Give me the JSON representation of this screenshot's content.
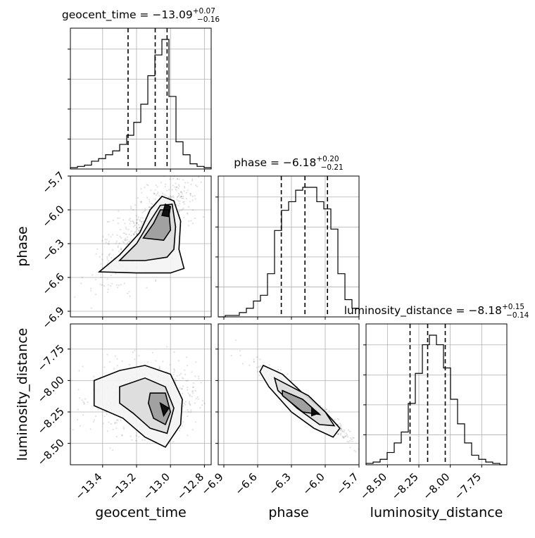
{
  "chart_data": {
    "type": "corner",
    "parameters": [
      "geocent_time",
      "phase",
      "luminosity_distance"
    ],
    "titles": [
      {
        "name": "geocent_time",
        "median": "−13.09",
        "plus": "+0.07",
        "minus": "−0.16"
      },
      {
        "name": "phase",
        "median": "−6.18",
        "plus": "+0.20",
        "minus": "−0.21"
      },
      {
        "name": "luminosity_distance",
        "median": "−8.18",
        "plus": "+0.15",
        "minus": "−0.14"
      }
    ],
    "ranges": [
      [
        -13.59,
        -12.76
      ],
      [
        -6.95,
        -5.7
      ],
      [
        -8.67,
        -7.55
      ]
    ],
    "ticks": {
      "geocent_time": {
        "values": [
          -13.4,
          -13.2,
          -13.0,
          -12.8
        ],
        "labels": [
          "−13.4",
          "−13.2",
          "−13.0",
          "−12.8"
        ]
      },
      "phase": {
        "values": [
          -6.9,
          -6.6,
          -6.3,
          -6.0,
          -5.7
        ],
        "labels": [
          "−6.9",
          "−6.6",
          "−6.3",
          "−6.0",
          "−5.7"
        ]
      },
      "luminosity_distance": {
        "values": [
          -8.5,
          -8.25,
          -8.0,
          -7.75
        ],
        "labels": [
          "−8.50",
          "−8.25",
          "−8.00",
          "−7.75"
        ]
      }
    },
    "quantiles": {
      "geocent_time": [
        -13.25,
        -13.09,
        -13.02
      ],
      "phase": [
        -6.39,
        -6.18,
        -5.98
      ],
      "luminosity_distance": [
        -8.32,
        -8.18,
        -8.04
      ]
    },
    "histograms": {
      "geocent_time": {
        "bin_start": -13.59,
        "bin_width": 0.0415,
        "counts": [
          1,
          2,
          3,
          6,
          8,
          11,
          14,
          19,
          26,
          36,
          50,
          72,
          88,
          100,
          56,
          21,
          11,
          4,
          2,
          1
        ]
      },
      "phase": {
        "bin_start": -6.95,
        "bin_width": 0.0625,
        "counts": [
          0,
          1,
          1,
          3,
          6,
          11,
          15,
          30,
          60,
          74,
          80,
          88,
          90,
          90,
          80,
          75,
          61,
          30,
          12,
          6
        ]
      },
      "luminosity_distance": {
        "bin_start": -8.67,
        "bin_width": 0.056,
        "counts": [
          1,
          2,
          4,
          9,
          16,
          24,
          45,
          67,
          88,
          95,
          88,
          71,
          48,
          30,
          16,
          7,
          4,
          2,
          1,
          0
        ]
      }
    },
    "grid": true,
    "contours": true
  }
}
